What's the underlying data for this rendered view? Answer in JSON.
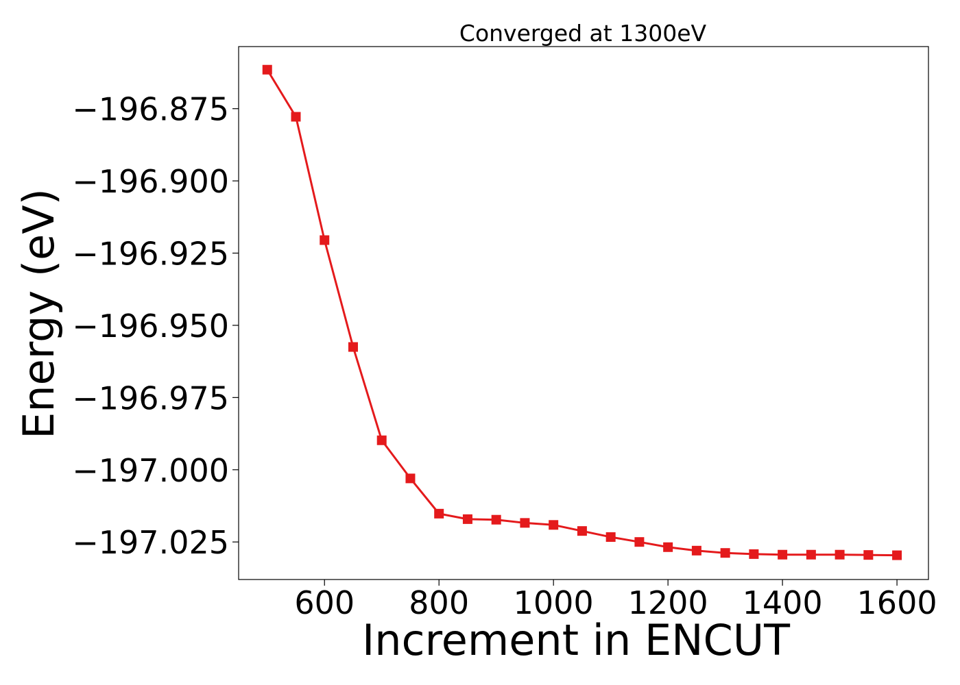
{
  "chart_data": {
    "type": "line",
    "title": "Converged at 1300eV",
    "xlabel": "Increment in ENCUT",
    "ylabel": "Energy (eV)",
    "xlim": [
      450,
      1655
    ],
    "ylim": [
      -197.038,
      -196.8535
    ],
    "xticks": [
      600,
      800,
      1000,
      1200,
      1400,
      1600
    ],
    "xtick_labels": [
      "600",
      "800",
      "1000",
      "1200",
      "1400",
      "1600"
    ],
    "yticks": [
      -196.875,
      -196.9,
      -196.925,
      -196.95,
      -196.975,
      -197.0,
      -197.025
    ],
    "ytick_labels": [
      "−196.875",
      "−196.900",
      "−196.925",
      "−196.950",
      "−196.975",
      "−197.000",
      "−197.025"
    ],
    "grid": false,
    "legend": false,
    "series": [
      {
        "color": "#e41a1c",
        "marker": "square",
        "x": [
          500,
          550,
          600,
          650,
          700,
          750,
          800,
          850,
          900,
          950,
          1000,
          1050,
          1100,
          1150,
          1200,
          1250,
          1300,
          1350,
          1400,
          1450,
          1500,
          1550,
          1600
        ],
        "y": [
          -196.8615,
          -196.8778,
          -196.9205,
          -196.9575,
          -196.9898,
          -197.003,
          -197.0152,
          -197.0171,
          -197.0173,
          -197.0184,
          -197.0191,
          -197.0212,
          -197.0233,
          -197.025,
          -197.0268,
          -197.028,
          -197.0288,
          -197.0292,
          -197.0294,
          -197.0294,
          -197.0294,
          -197.0295,
          -197.0296
        ]
      }
    ]
  }
}
